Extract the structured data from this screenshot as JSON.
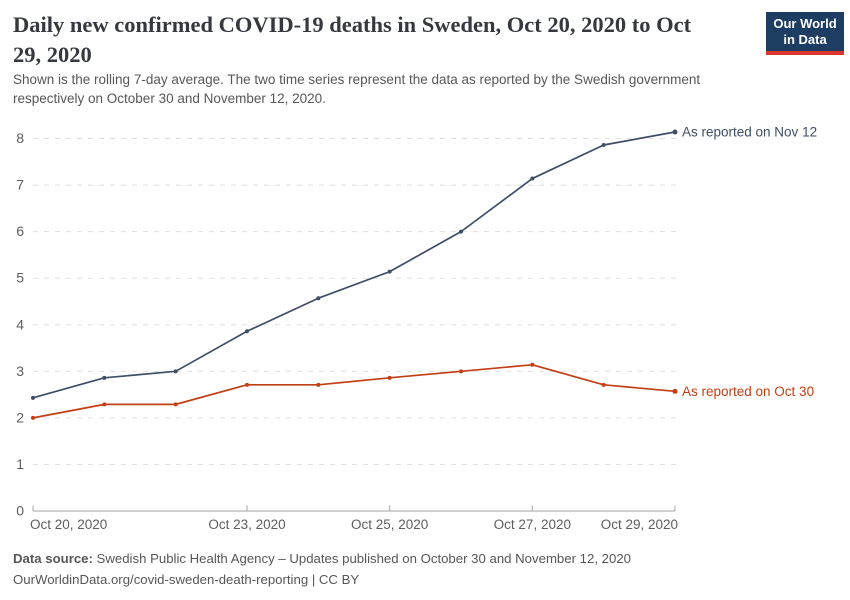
{
  "header": {
    "title_line1": "Daily new confirmed COVID-19 deaths in Sweden, Oct 20, 2020 to Oct",
    "title_line2": "29, 2020",
    "subtitle_line1": "Shown is the rolling 7-day average. The two time series represent the data as reported by the Swedish government",
    "subtitle_line2": "respectively on October 30 and November 12, 2020.",
    "logo": {
      "line1": "Our World",
      "line2": "in Data",
      "bg_color": "#1d3d63",
      "accent_color": "#dc352c"
    }
  },
  "chart_data": {
    "type": "line",
    "title": "Daily new confirmed COVID-19 deaths in Sweden, Oct 20, 2020 to Oct 29, 2020",
    "x": [
      "Oct 20, 2020",
      "Oct 21, 2020",
      "Oct 22, 2020",
      "Oct 23, 2020",
      "Oct 24, 2020",
      "Oct 25, 2020",
      "Oct 26, 2020",
      "Oct 27, 2020",
      "Oct 28, 2020",
      "Oct 29, 2020"
    ],
    "series": [
      {
        "name": "As reported on Nov 12",
        "label": "As reported on Nov 12",
        "color": "#3d4e66",
        "values": [
          2.43,
          2.86,
          3.0,
          3.86,
          4.57,
          5.14,
          6.0,
          7.14,
          7.86,
          8.14
        ]
      },
      {
        "name": "As reported on Oct 30",
        "label": "As reported on Oct 30",
        "color": "#c43e14",
        "values": [
          2.0,
          2.29,
          2.29,
          2.71,
          2.71,
          2.86,
          3.0,
          3.14,
          2.71,
          2.57
        ]
      }
    ],
    "ylim": [
      0,
      8
    ],
    "yticks": [
      0,
      1,
      2,
      3,
      4,
      5,
      6,
      7,
      8
    ],
    "xticks": [
      {
        "index": 0,
        "label": "Oct 20, 2020"
      },
      {
        "index": 3,
        "label": "Oct 23, 2020"
      },
      {
        "index": 5,
        "label": "Oct 25, 2020"
      },
      {
        "index": 7,
        "label": "Oct 27, 2020"
      },
      {
        "index": 9,
        "label": "Oct 29, 2020"
      }
    ],
    "grid": "horizontal-dashed",
    "legend_position": "line-end-labels",
    "grid_color": "#e0e0e0",
    "axis_color": "#a5a5a5",
    "tick_label_color": "#5e5e5e"
  },
  "footer": {
    "data_source_label": "Data source:",
    "data_source_text": " Swedish Public Health Agency – Updates published on October 30 and November 12, 2020",
    "link_line": "OurWorldinData.org/covid-sweden-death-reporting | CC BY"
  }
}
